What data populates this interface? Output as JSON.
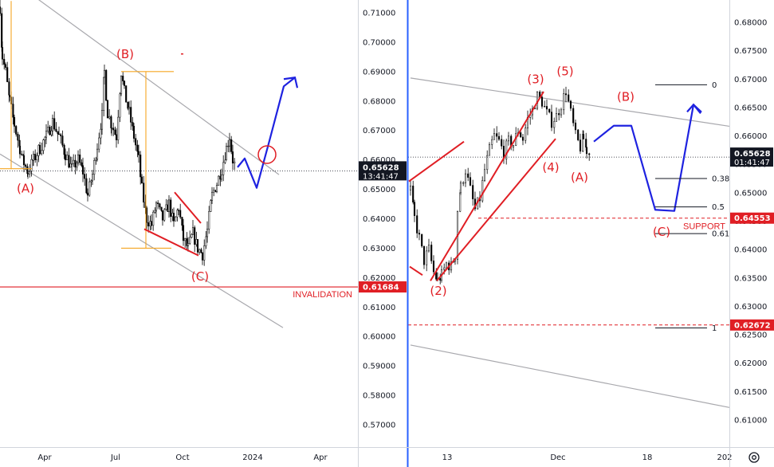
{
  "chart_data": [
    {
      "type": "candlestick",
      "panel": "left",
      "timeframe_scale": "daily",
      "ylim": [
        0.566,
        0.716
      ],
      "yticks": [
        "0.71000",
        "0.70000",
        "0.69000",
        "0.68000",
        "0.67000",
        "0.66000",
        "0.65000",
        "0.64000",
        "0.63000",
        "0.62000",
        "0.61000",
        "0.60000",
        "0.59000",
        "0.58000",
        "0.57000"
      ],
      "ytick_values": [
        0.71,
        0.7,
        0.69,
        0.68,
        0.67,
        0.66,
        0.65,
        0.64,
        0.63,
        0.62,
        0.61,
        0.6,
        0.59,
        0.58,
        0.57
      ],
      "xticks": [
        "Apr",
        "Jul",
        "Oct",
        "2024",
        "Apr"
      ],
      "price_path": [
        [
          0,
          0.712
        ],
        [
          3,
          0.695
        ],
        [
          7,
          0.69
        ],
        [
          12,
          0.68
        ],
        [
          18,
          0.672
        ],
        [
          25,
          0.664
        ],
        [
          30,
          0.659
        ],
        [
          35,
          0.656
        ],
        [
          42,
          0.66
        ],
        [
          50,
          0.664
        ],
        [
          58,
          0.668
        ],
        [
          66,
          0.673
        ],
        [
          74,
          0.668
        ],
        [
          82,
          0.662
        ],
        [
          90,
          0.657
        ],
        [
          98,
          0.66
        ],
        [
          104,
          0.656
        ],
        [
          110,
          0.648
        ],
        [
          116,
          0.655
        ],
        [
          122,
          0.665
        ],
        [
          128,
          0.675
        ],
        [
          131,
          0.69
        ],
        [
          135,
          0.676
        ],
        [
          140,
          0.672
        ],
        [
          146,
          0.668
        ],
        [
          152,
          0.69
        ],
        [
          156,
          0.683
        ],
        [
          162,
          0.676
        ],
        [
          168,
          0.668
        ],
        [
          174,
          0.66
        ],
        [
          178,
          0.65
        ],
        [
          184,
          0.64
        ],
        [
          190,
          0.638
        ],
        [
          196,
          0.645
        ],
        [
          204,
          0.64
        ],
        [
          212,
          0.645
        ],
        [
          218,
          0.638
        ],
        [
          224,
          0.644
        ],
        [
          230,
          0.633
        ],
        [
          236,
          0.63
        ],
        [
          242,
          0.635
        ],
        [
          248,
          0.63
        ],
        [
          254,
          0.628
        ],
        [
          260,
          0.636
        ],
        [
          266,
          0.648
        ],
        [
          272,
          0.652
        ],
        [
          278,
          0.657
        ],
        [
          284,
          0.664
        ],
        [
          288,
          0.668
        ],
        [
          292,
          0.66
        ],
        [
          295,
          0.658
        ]
      ],
      "last_price": {
        "label": "0.65628",
        "countdown": "13:41:47",
        "value": 0.65628
      },
      "invalidation_price": {
        "label": "0.61684",
        "value": 0.61684,
        "text": "INVALIDATION"
      },
      "wave_labels": [
        {
          "text": "(A)",
          "x": 32,
          "y": 0.649
        },
        {
          "text": "(B)",
          "x": 157,
          "y": 0.6945
        },
        {
          "text": "(C)",
          "x": 251,
          "y": 0.619
        }
      ],
      "projection_path": [
        [
          298,
          0.6575
        ],
        [
          307,
          0.6605
        ],
        [
          322,
          0.6505
        ],
        [
          338,
          0.6665
        ],
        [
          356,
          0.685
        ],
        [
          370,
          0.688
        ]
      ],
      "channel_upper": [
        [
          0,
          0.724
        ],
        [
          350,
          0.655
        ]
      ],
      "channel_lower": [
        [
          0,
          0.662
        ],
        [
          355,
          0.603
        ]
      ],
      "target_circle": {
        "x": 335,
        "y": 0.6618
      }
    },
    {
      "type": "candlestick",
      "panel": "right",
      "timeframe_scale": "4h",
      "ylim": [
        0.6034,
        0.685
      ],
      "yticks": [
        "0.68000",
        "0.67500",
        "0.67000",
        "0.66500",
        "0.66000",
        "0.65500",
        "0.65000",
        "0.64500",
        "0.64000",
        "0.63500",
        "0.63000",
        "0.62500",
        "0.62000",
        "0.61500",
        "0.61000"
      ],
      "ytick_values": [
        0.68,
        0.675,
        0.67,
        0.665,
        0.66,
        0.655,
        0.65,
        0.645,
        0.64,
        0.635,
        0.63,
        0.625,
        0.62,
        0.615,
        0.61
      ],
      "xticks": [
        "13",
        "Dec",
        "18",
        "202"
      ],
      "price_path": [
        [
          515,
          0.6505
        ],
        [
          520,
          0.6455
        ],
        [
          526,
          0.642
        ],
        [
          532,
          0.638
        ],
        [
          538,
          0.64
        ],
        [
          544,
          0.636
        ],
        [
          549,
          0.6345
        ],
        [
          554,
          0.6355
        ],
        [
          560,
          0.6375
        ],
        [
          566,
          0.637
        ],
        [
          571,
          0.639
        ],
        [
          574,
          0.647
        ],
        [
          578,
          0.651
        ],
        [
          584,
          0.654
        ],
        [
          590,
          0.6505
        ],
        [
          596,
          0.647
        ],
        [
          602,
          0.649
        ],
        [
          608,
          0.654
        ],
        [
          614,
          0.6575
        ],
        [
          620,
          0.66
        ],
        [
          626,
          0.659
        ],
        [
          632,
          0.657
        ],
        [
          638,
          0.659
        ],
        [
          644,
          0.6585
        ],
        [
          650,
          0.661
        ],
        [
          656,
          0.6595
        ],
        [
          662,
          0.663
        ],
        [
          668,
          0.6645
        ],
        [
          674,
          0.667
        ],
        [
          680,
          0.666
        ],
        [
          686,
          0.664
        ],
        [
          692,
          0.6625
        ],
        [
          698,
          0.6635
        ],
        [
          704,
          0.6655
        ],
        [
          710,
          0.668
        ],
        [
          716,
          0.664
        ],
        [
          722,
          0.66
        ],
        [
          728,
          0.658
        ],
        [
          732,
          0.6595
        ],
        [
          736,
          0.6575
        ],
        [
          741,
          0.6565
        ]
      ],
      "last_price": {
        "label": "0.65628",
        "countdown": "01:41:47",
        "value": 0.65628
      },
      "support_price": {
        "label": "0.64553",
        "value": 0.64553,
        "text": "SUPPORT"
      },
      "lower_price": {
        "label": "0.62672",
        "value": 0.62672
      },
      "wave_labels": [
        {
          "text": "(2)",
          "x": 550,
          "y": 0.632
        },
        {
          "text": "(3)",
          "x": 672,
          "y": 0.6693
        },
        {
          "text": "(4)",
          "x": 691,
          "y": 0.6538
        },
        {
          "text": "(5)",
          "x": 709,
          "y": 0.6707
        },
        {
          "text": "(A)",
          "x": 727,
          "y": 0.652
        },
        {
          "text": "(B)",
          "x": 785,
          "y": 0.6662
        },
        {
          "text": "(C)",
          "x": 830,
          "y": 0.6424
        }
      ],
      "fib_levels": [
        {
          "label": "0",
          "value": 0.669
        },
        {
          "label": "0.38",
          "value": 0.6525
        },
        {
          "label": "0.5",
          "value": 0.6475
        },
        {
          "label": "0.61",
          "value": 0.6428
        },
        {
          "label": "1",
          "value": 0.6262
        }
      ],
      "projection_path": [
        [
          745,
          0.659
        ],
        [
          770,
          0.6618
        ],
        [
          792,
          0.6618
        ],
        [
          822,
          0.647
        ],
        [
          846,
          0.6468
        ],
        [
          870,
          0.6655
        ],
        [
          880,
          0.6642
        ]
      ],
      "wedge_upper": [
        [
          540,
          0.6345
        ],
        [
          682,
          0.6678
        ]
      ],
      "wedge_lower": [
        [
          548,
          0.6345
        ],
        [
          697,
          0.6595
        ]
      ],
      "channel_upper": [
        [
          515,
          0.6702
        ],
        [
          915,
          0.6617
        ]
      ],
      "channel_lower": [
        [
          515,
          0.6232
        ],
        [
          915,
          0.6122
        ]
      ]
    }
  ]
}
